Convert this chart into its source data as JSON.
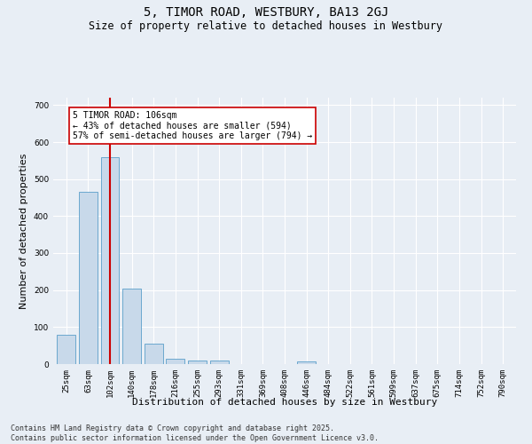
{
  "title": "5, TIMOR ROAD, WESTBURY, BA13 2GJ",
  "subtitle": "Size of property relative to detached houses in Westbury",
  "xlabel": "Distribution of detached houses by size in Westbury",
  "ylabel": "Number of detached properties",
  "bar_categories": [
    "25sqm",
    "63sqm",
    "102sqm",
    "140sqm",
    "178sqm",
    "216sqm",
    "255sqm",
    "293sqm",
    "331sqm",
    "369sqm",
    "408sqm",
    "446sqm",
    "484sqm",
    "522sqm",
    "561sqm",
    "599sqm",
    "637sqm",
    "675sqm",
    "714sqm",
    "752sqm",
    "790sqm"
  ],
  "bar_values": [
    80,
    465,
    560,
    205,
    55,
    15,
    10,
    10,
    0,
    0,
    0,
    8,
    0,
    0,
    0,
    0,
    0,
    0,
    0,
    0,
    0
  ],
  "bar_color": "#c8d9ea",
  "bar_edgecolor": "#5a9ec9",
  "vline_index": 2,
  "vline_color": "#cc0000",
  "annotation_text": "5 TIMOR ROAD: 106sqm\n← 43% of detached houses are smaller (594)\n57% of semi-detached houses are larger (794) →",
  "annotation_box_color": "white",
  "annotation_box_edgecolor": "#cc0000",
  "ylim": [
    0,
    720
  ],
  "yticks": [
    0,
    100,
    200,
    300,
    400,
    500,
    600,
    700
  ],
  "bg_color": "#e8eef5",
  "plot_bg_color": "#e8eef5",
  "footer_text": "Contains HM Land Registry data © Crown copyright and database right 2025.\nContains public sector information licensed under the Open Government Licence v3.0.",
  "title_fontsize": 10,
  "subtitle_fontsize": 8.5,
  "xlabel_fontsize": 8,
  "ylabel_fontsize": 8,
  "tick_fontsize": 6.5,
  "footer_fontsize": 6,
  "annotation_fontsize": 7
}
